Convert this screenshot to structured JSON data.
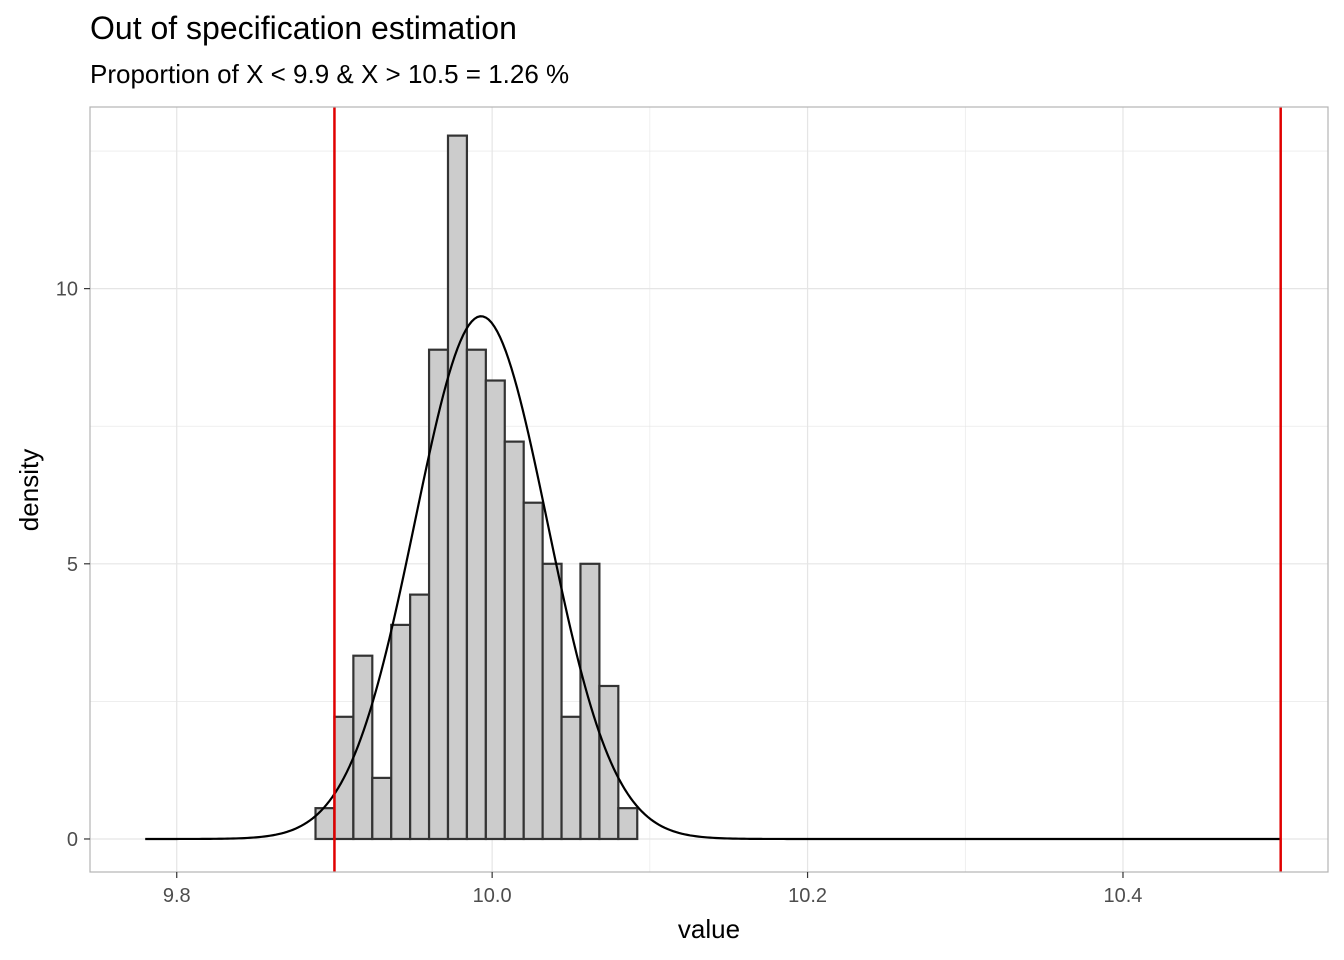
{
  "title": "Out of specification estimation",
  "subtitle": "Proportion of X < 9.9 & X > 10.5  = 1.26 %",
  "chart_data": {
    "type": "histogram",
    "title": "Out of specification estimation",
    "subtitle": "Proportion of X < 9.9 & X > 10.5  = 1.26 %",
    "xlabel": "value",
    "ylabel": "density",
    "xlim": [
      9.745,
      10.53
    ],
    "ylim": [
      -0.6,
      13.3
    ],
    "x_ticks": [
      9.8,
      10.0,
      10.2,
      10.4
    ],
    "x_tick_labels": [
      "9.8",
      "10.0",
      "10.2",
      "10.4"
    ],
    "y_ticks": [
      0,
      5,
      10
    ],
    "y_tick_labels": [
      "0",
      "5",
      "10"
    ],
    "grid": true,
    "bin_width": 0.012,
    "bins": [
      {
        "start": 9.888,
        "end": 9.9,
        "density": 0.56
      },
      {
        "start": 9.9,
        "end": 9.912,
        "density": 2.22
      },
      {
        "start": 9.912,
        "end": 9.924,
        "density": 3.33
      },
      {
        "start": 9.924,
        "end": 9.936,
        "density": 1.11
      },
      {
        "start": 9.936,
        "end": 9.948,
        "density": 3.89
      },
      {
        "start": 9.948,
        "end": 9.96,
        "density": 4.44
      },
      {
        "start": 9.96,
        "end": 9.972,
        "density": 8.89
      },
      {
        "start": 9.972,
        "end": 9.984,
        "density": 12.78
      },
      {
        "start": 9.984,
        "end": 9.996,
        "density": 8.89
      },
      {
        "start": 9.996,
        "end": 10.008,
        "density": 8.33
      },
      {
        "start": 10.008,
        "end": 10.02,
        "density": 7.22
      },
      {
        "start": 10.02,
        "end": 10.032,
        "density": 6.11
      },
      {
        "start": 10.032,
        "end": 10.044,
        "density": 5.0
      },
      {
        "start": 10.044,
        "end": 10.056,
        "density": 2.22
      },
      {
        "start": 10.056,
        "end": 10.068,
        "density": 5.0
      },
      {
        "start": 10.068,
        "end": 10.08,
        "density": 2.78
      },
      {
        "start": 10.08,
        "end": 10.092,
        "density": 0.56
      }
    ],
    "density_curve": {
      "type": "normal",
      "mean": 9.993,
      "sd": 0.042,
      "x_range": [
        9.78,
        10.5
      ]
    },
    "spec_limits": [
      9.9,
      10.5
    ],
    "colors": {
      "bar_fill": "#cccccc",
      "bar_stroke": "#333333",
      "curve": "#000000",
      "spec_line": "#e00000",
      "grid": "#e5e5e5",
      "panel_border": "#b3b3b3"
    }
  }
}
